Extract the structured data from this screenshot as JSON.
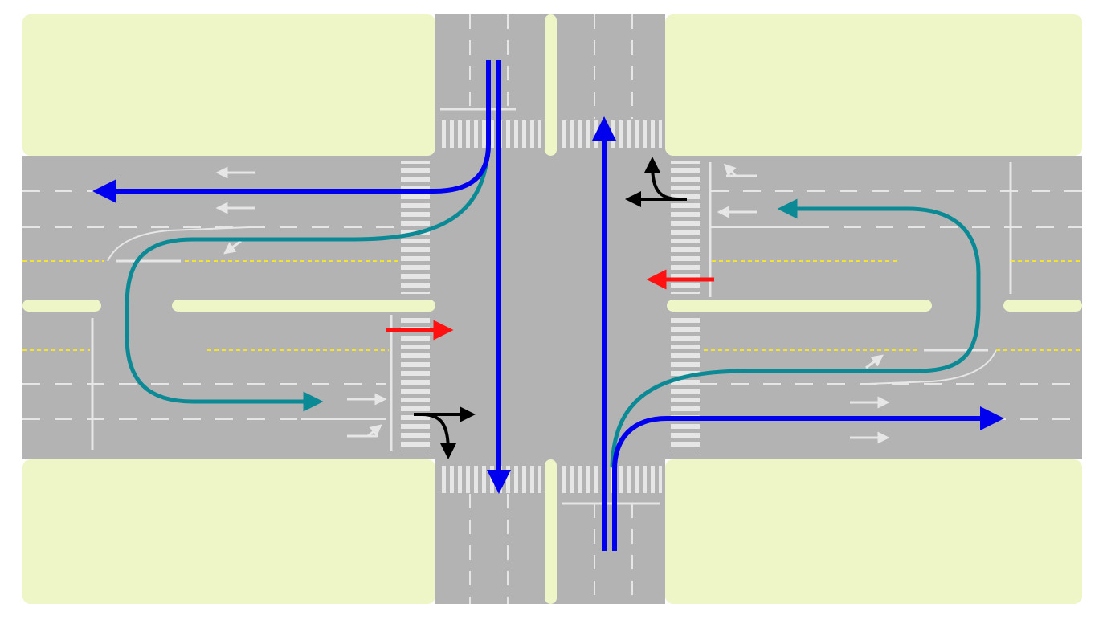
{
  "colors": {
    "background": "#ffffff",
    "land": "#eef5c6",
    "road": "#b3b3b3",
    "lane_marking": "#e6e6e6",
    "center_line": "#f2e233",
    "median": "#eef5c6",
    "through_and_right_turn_flow": "#0000ee",
    "u_turn_left_flow": "#0b8a96",
    "pedestrian_crossing_flow": "#ff1111",
    "local_turn_flow": "#000000"
  },
  "icons": {
    "flow_arrowhead": "triangle-arrowhead",
    "lane_arrow": "white-pavement-arrow",
    "crosswalk": "zebra-stripes"
  }
}
